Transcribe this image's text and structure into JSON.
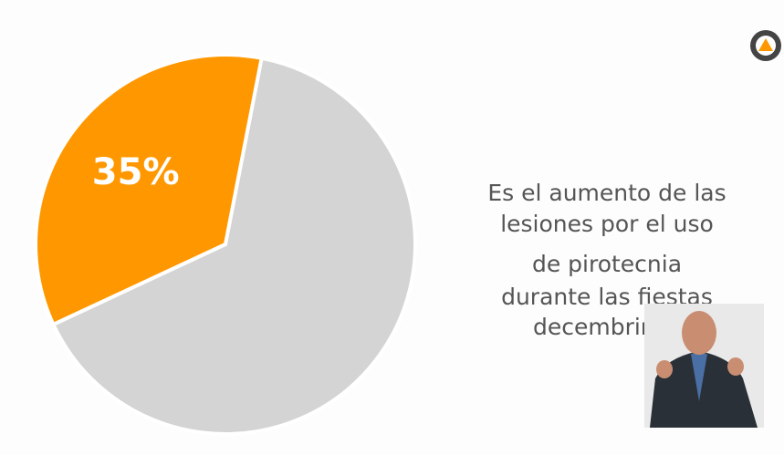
{
  "chart_data": {
    "type": "pie",
    "values": [
      35,
      65
    ],
    "value_labels": [
      "35%",
      null
    ],
    "colors": [
      "#ff9800",
      "#d4d4d4"
    ],
    "annotation": [
      "Es el aumento de las",
      "lesiones por el uso",
      "de pirotecnia",
      "durante las fiestas",
      "decembrinas"
    ]
  }
}
